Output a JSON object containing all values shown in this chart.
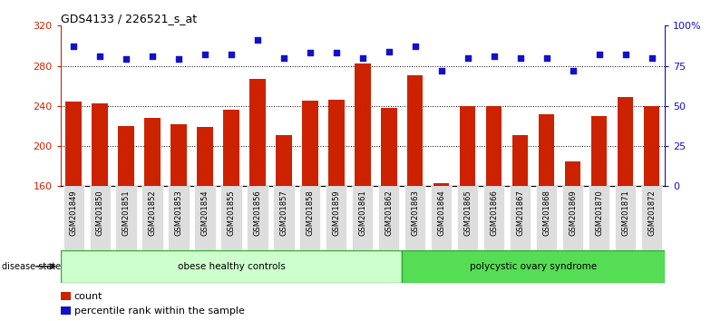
{
  "title": "GDS4133 / 226521_s_at",
  "samples": [
    "GSM201849",
    "GSM201850",
    "GSM201851",
    "GSM201852",
    "GSM201853",
    "GSM201854",
    "GSM201855",
    "GSM201856",
    "GSM201857",
    "GSM201858",
    "GSM201859",
    "GSM201861",
    "GSM201862",
    "GSM201863",
    "GSM201864",
    "GSM201865",
    "GSM201866",
    "GSM201867",
    "GSM201868",
    "GSM201869",
    "GSM201870",
    "GSM201871",
    "GSM201872"
  ],
  "counts": [
    244,
    243,
    220,
    228,
    222,
    219,
    236,
    267,
    211,
    245,
    246,
    282,
    238,
    271,
    163,
    240,
    240,
    211,
    232,
    185,
    230,
    249,
    240
  ],
  "percentiles": [
    87,
    81,
    79,
    81,
    79,
    82,
    82,
    91,
    80,
    83,
    83,
    80,
    84,
    87,
    72,
    80,
    81,
    80,
    80,
    72,
    82,
    82,
    80
  ],
  "group1_label": "obese healthy controls",
  "group1_count": 13,
  "group2_label": "polycystic ovary syndrome",
  "group2_count": 10,
  "disease_state_label": "disease state",
  "bar_color": "#cc2200",
  "dot_color": "#1111cc",
  "ymin": 160,
  "ymax": 320,
  "yticks": [
    160,
    200,
    240,
    280,
    320
  ],
  "y2min": 0,
  "y2max": 100,
  "y2ticks": [
    0,
    25,
    50,
    75,
    100
  ],
  "y2ticklabels": [
    "0",
    "25",
    "50",
    "75",
    "100%"
  ],
  "dotted_lines": [
    200,
    240,
    280
  ],
  "legend_count_label": "count",
  "legend_pct_label": "percentile rank within the sample",
  "group1_color": "#ccffcc",
  "group2_color": "#55dd55",
  "tick_bg_color": "#dddddd",
  "bg_color": "#ffffff",
  "group_border_color": "#33aa33"
}
